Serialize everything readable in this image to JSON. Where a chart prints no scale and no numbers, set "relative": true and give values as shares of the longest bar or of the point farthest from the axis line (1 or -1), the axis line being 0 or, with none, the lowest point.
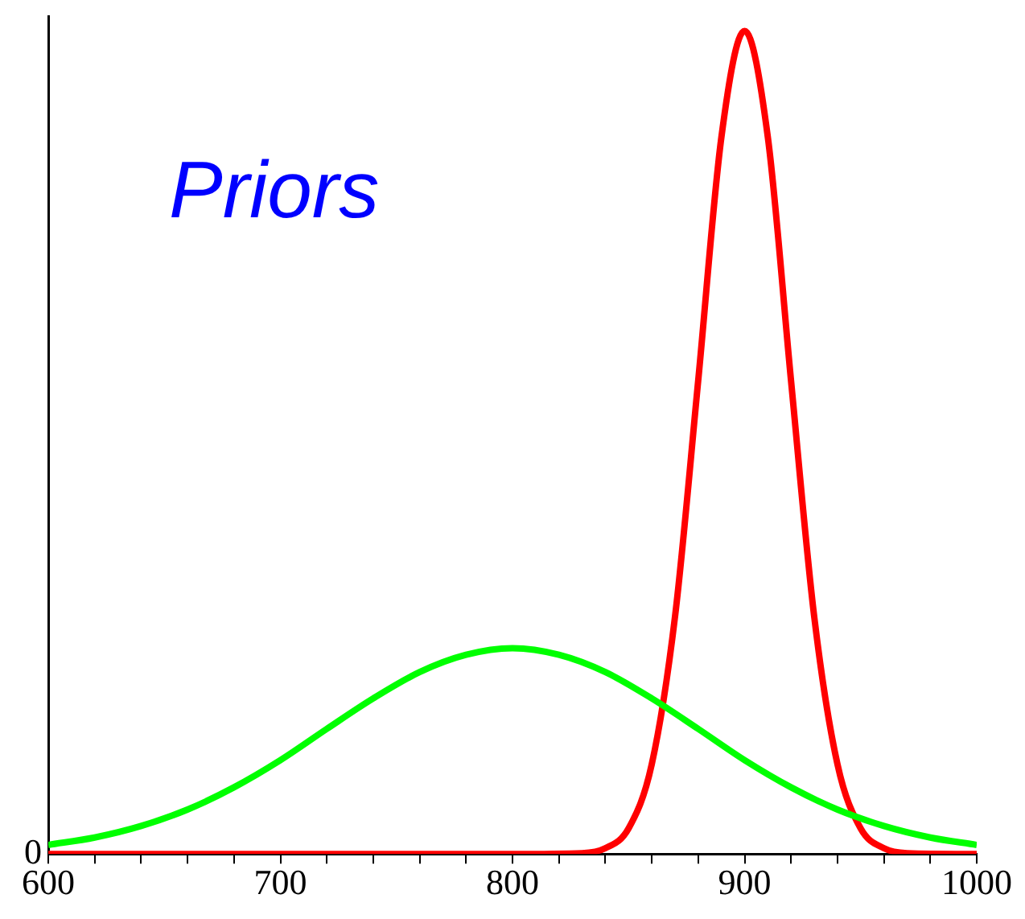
{
  "chart_data": {
    "type": "line",
    "title": "Priors",
    "relative": true,
    "grid": false,
    "legend": false,
    "marker": "none",
    "line_style": "solid",
    "xlim": [
      600,
      1000
    ],
    "xticks": [
      600,
      {
        "value": 620,
        "label": null
      },
      {
        "value": 640,
        "label": null
      },
      {
        "value": 660,
        "label": null
      },
      {
        "value": 680,
        "label": null
      },
      700,
      {
        "value": 720,
        "label": null
      },
      {
        "value": 740,
        "label": null
      },
      {
        "value": 760,
        "label": null
      },
      {
        "value": 780,
        "label": null
      },
      800,
      {
        "value": 820,
        "label": null
      },
      {
        "value": 840,
        "label": null
      },
      {
        "value": 860,
        "label": null
      },
      {
        "value": 880,
        "label": null
      },
      900,
      {
        "value": 920,
        "label": null
      },
      {
        "value": 940,
        "label": null
      },
      {
        "value": 960,
        "label": null
      },
      {
        "value": 980,
        "label": null
      },
      1000
    ],
    "annotations": [
      "0"
    ],
    "series": [
      {
        "color": "#00ff00",
        "x": [
          600,
          620,
          640,
          660,
          680,
          700,
          720,
          740,
          760,
          780,
          800,
          820,
          840,
          860,
          880,
          900,
          920,
          940,
          960,
          980,
          1000
        ],
        "values": [
          0.011,
          0.02,
          0.034,
          0.054,
          0.081,
          0.114,
          0.152,
          0.189,
          0.221,
          0.242,
          0.25,
          0.242,
          0.221,
          0.189,
          0.152,
          0.114,
          0.081,
          0.054,
          0.034,
          0.02,
          0.011
        ]
      },
      {
        "color": "#ff0000",
        "x": [
          600,
          700,
          800,
          830,
          840,
          850,
          860,
          870,
          880,
          890,
          900,
          910,
          920,
          930,
          940,
          950,
          960,
          970,
          1000
        ],
        "values": [
          0,
          0,
          0,
          0.001,
          0.007,
          0.031,
          0.109,
          0.288,
          0.575,
          0.871,
          1,
          0.871,
          0.575,
          0.288,
          0.109,
          0.031,
          0.007,
          0.001,
          0
        ]
      }
    ]
  }
}
